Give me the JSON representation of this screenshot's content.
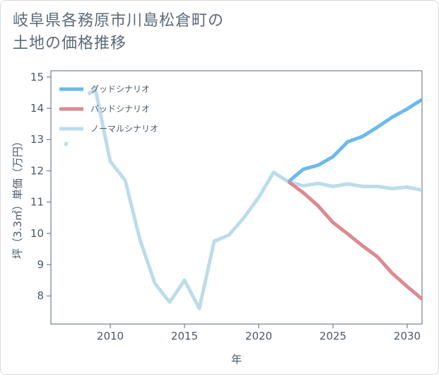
{
  "title_lines": [
    "岐阜県各務原市川島松倉町の",
    "土地の価格推移"
  ],
  "colors": {
    "good": "#6cbaeb",
    "bad": "#dd8a90",
    "normal": "#bddcea",
    "axis": "#55687a",
    "text": "#4a5a68"
  },
  "chart_data": {
    "type": "line",
    "title": "岐阜県各務原市川島松倉町の土地の価格推移",
    "xlabel": "年",
    "ylabel": "坪（3.3㎡）単価（万円）",
    "xlim": [
      2006.0,
      2031.0
    ],
    "ylim": [
      7.1,
      15.2
    ],
    "xticks": [
      2010,
      2015,
      2020,
      2025,
      2030
    ],
    "yticks": [
      8,
      9,
      10,
      11,
      12,
      13,
      14,
      15
    ],
    "legend_position": "top-left",
    "series": [
      {
        "name": "グッドシナリオ",
        "color_key": "good",
        "x": [
          2022,
          2023,
          2024,
          2025,
          2026,
          2027,
          2028,
          2029,
          2030,
          2031
        ],
        "y": [
          11.65,
          12.05,
          12.18,
          12.45,
          12.93,
          13.1,
          13.4,
          13.72,
          13.98,
          14.28
        ]
      },
      {
        "name": "バッドシナリオ",
        "color_key": "bad",
        "x": [
          2022,
          2023,
          2024,
          2025,
          2026,
          2027,
          2028,
          2029,
          2030,
          2031
        ],
        "y": [
          11.65,
          11.3,
          10.88,
          10.35,
          9.98,
          9.6,
          9.25,
          8.72,
          8.3,
          7.9
        ]
      },
      {
        "name": "ノーマルシナリオ",
        "color_key": "normal",
        "x": [
          2007,
          2007.05,
          null,
          2008.5,
          2009,
          2010,
          2011,
          2012,
          2013,
          2014,
          2015,
          2016,
          2017,
          2018,
          2019,
          2020,
          2021,
          2022,
          2023,
          2024,
          2025,
          2026,
          2027,
          2028,
          2029,
          2030,
          2031
        ],
        "y": [
          12.8,
          12.92,
          null,
          14.45,
          14.6,
          12.3,
          11.7,
          9.8,
          8.4,
          7.8,
          8.5,
          7.6,
          9.75,
          9.95,
          10.5,
          11.15,
          11.95,
          11.65,
          11.52,
          11.6,
          11.5,
          11.58,
          11.5,
          11.5,
          11.43,
          11.48,
          11.38
        ]
      }
    ]
  }
}
